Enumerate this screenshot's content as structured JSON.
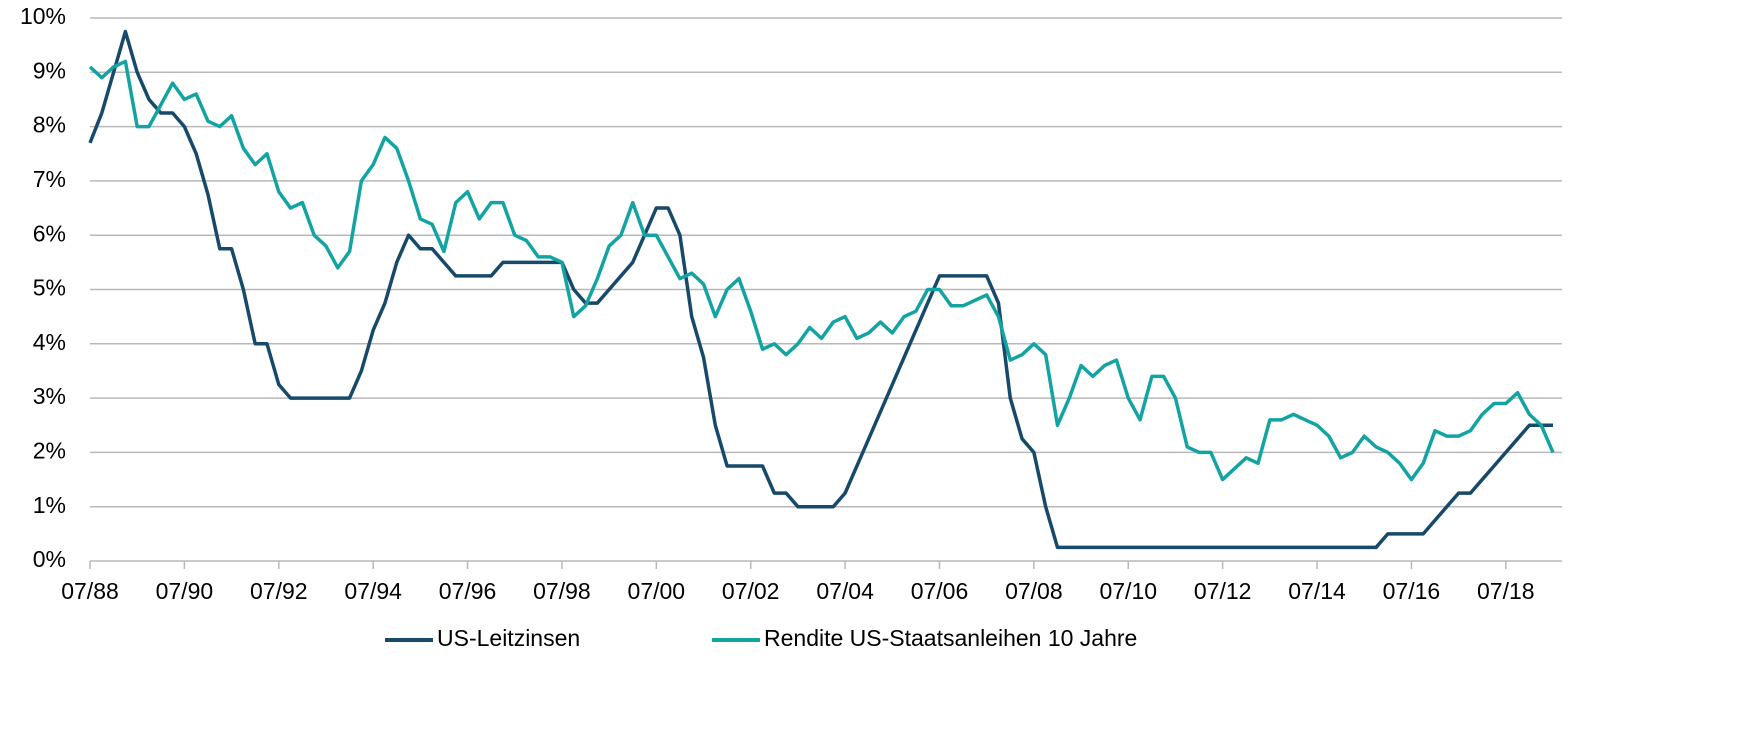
{
  "chart_data": {
    "type": "line",
    "x": [
      "07/88",
      "10/88",
      "01/89",
      "04/89",
      "07/89",
      "10/89",
      "01/90",
      "04/90",
      "07/90",
      "10/90",
      "01/91",
      "04/91",
      "07/91",
      "10/91",
      "01/92",
      "04/92",
      "07/92",
      "10/92",
      "01/93",
      "04/93",
      "07/93",
      "10/93",
      "01/94",
      "04/94",
      "07/94",
      "10/94",
      "01/95",
      "04/95",
      "07/95",
      "10/95",
      "01/96",
      "04/96",
      "07/96",
      "10/96",
      "01/97",
      "04/97",
      "07/97",
      "10/97",
      "01/98",
      "04/98",
      "07/98",
      "10/98",
      "01/99",
      "04/99",
      "07/99",
      "10/99",
      "01/00",
      "04/00",
      "07/00",
      "10/00",
      "01/01",
      "04/01",
      "07/01",
      "10/01",
      "01/02",
      "04/02",
      "07/02",
      "10/02",
      "01/03",
      "04/03",
      "07/03",
      "10/03",
      "01/04",
      "04/04",
      "07/04",
      "10/04",
      "01/05",
      "04/05",
      "07/05",
      "10/05",
      "01/06",
      "04/06",
      "07/06",
      "10/06",
      "01/07",
      "04/07",
      "07/07",
      "10/07",
      "01/08",
      "04/08",
      "07/08",
      "10/08",
      "01/09",
      "04/09",
      "07/09",
      "10/09",
      "01/10",
      "04/10",
      "07/10",
      "10/10",
      "01/11",
      "04/11",
      "07/11",
      "10/11",
      "01/12",
      "04/12",
      "07/12",
      "10/12",
      "01/13",
      "04/13",
      "07/13",
      "10/13",
      "01/14",
      "04/14",
      "07/14",
      "10/14",
      "01/15",
      "04/15",
      "07/15",
      "10/15",
      "01/16",
      "04/16",
      "07/16",
      "10/16",
      "01/17",
      "04/17",
      "07/17",
      "10/17",
      "01/18",
      "04/18",
      "07/18",
      "10/18",
      "01/19",
      "04/19",
      "07/19"
    ],
    "series": [
      {
        "name": "US-Leitzinsen",
        "color": "#17496a",
        "values": [
          7.7,
          8.25,
          9.0,
          9.75,
          9.0,
          8.5,
          8.25,
          8.25,
          8.0,
          7.5,
          6.75,
          5.75,
          5.75,
          5.0,
          4.0,
          4.0,
          3.25,
          3.0,
          3.0,
          3.0,
          3.0,
          3.0,
          3.0,
          3.5,
          4.25,
          4.75,
          5.5,
          6.0,
          5.75,
          5.75,
          5.5,
          5.25,
          5.25,
          5.25,
          5.25,
          5.5,
          5.5,
          5.5,
          5.5,
          5.5,
          5.5,
          5.0,
          4.75,
          4.75,
          5.0,
          5.25,
          5.5,
          6.0,
          6.5,
          6.5,
          6.0,
          4.5,
          3.75,
          2.5,
          1.75,
          1.75,
          1.75,
          1.75,
          1.25,
          1.25,
          1.0,
          1.0,
          1.0,
          1.0,
          1.25,
          1.75,
          2.25,
          2.75,
          3.25,
          3.75,
          4.25,
          4.75,
          5.25,
          5.25,
          5.25,
          5.25,
          5.25,
          4.75,
          3.0,
          2.25,
          2.0,
          1.0,
          0.25,
          0.25,
          0.25,
          0.25,
          0.25,
          0.25,
          0.25,
          0.25,
          0.25,
          0.25,
          0.25,
          0.25,
          0.25,
          0.25,
          0.25,
          0.25,
          0.25,
          0.25,
          0.25,
          0.25,
          0.25,
          0.25,
          0.25,
          0.25,
          0.25,
          0.25,
          0.25,
          0.25,
          0.5,
          0.5,
          0.5,
          0.5,
          0.75,
          1.0,
          1.25,
          1.25,
          1.5,
          1.75,
          2.0,
          2.25,
          2.5,
          2.5,
          2.5
        ]
      },
      {
        "name": "Rendite US-Staatsanleihen 10 Jahre",
        "color": "#14a3a3",
        "values": [
          9.1,
          8.9,
          9.1,
          9.2,
          8.0,
          8.0,
          8.4,
          8.8,
          8.5,
          8.6,
          8.1,
          8.0,
          8.2,
          7.6,
          7.3,
          7.5,
          6.8,
          6.5,
          6.6,
          6.0,
          5.8,
          5.4,
          5.7,
          7.0,
          7.3,
          7.8,
          7.6,
          7.0,
          6.3,
          6.2,
          5.7,
          6.6,
          6.8,
          6.3,
          6.6,
          6.6,
          6.0,
          5.9,
          5.6,
          5.6,
          5.5,
          4.5,
          4.7,
          5.2,
          5.8,
          6.0,
          6.6,
          6.0,
          6.0,
          5.6,
          5.2,
          5.3,
          5.1,
          4.5,
          5.0,
          5.2,
          4.6,
          3.9,
          4.0,
          3.8,
          4.0,
          4.3,
          4.1,
          4.4,
          4.5,
          4.1,
          4.2,
          4.4,
          4.2,
          4.5,
          4.6,
          5.0,
          5.0,
          4.7,
          4.7,
          4.8,
          4.9,
          4.5,
          3.7,
          3.8,
          4.0,
          3.8,
          2.5,
          3.0,
          3.6,
          3.4,
          3.6,
          3.7,
          3.0,
          2.6,
          3.4,
          3.4,
          3.0,
          2.1,
          2.0,
          2.0,
          1.5,
          1.7,
          1.9,
          1.8,
          2.6,
          2.6,
          2.7,
          2.6,
          2.5,
          2.3,
          1.9,
          2.0,
          2.3,
          2.1,
          2.0,
          1.8,
          1.5,
          1.8,
          2.4,
          2.3,
          2.3,
          2.4,
          2.7,
          2.9,
          2.9,
          3.1,
          2.7,
          2.5,
          2.0
        ]
      }
    ],
    "ylim": [
      0,
      10
    ],
    "yticks": [
      {
        "value": 0,
        "label": "0%"
      },
      {
        "value": 1,
        "label": "1%"
      },
      {
        "value": 2,
        "label": "2%"
      },
      {
        "value": 3,
        "label": "3%"
      },
      {
        "value": 4,
        "label": "4%"
      },
      {
        "value": 5,
        "label": "5%"
      },
      {
        "value": 6,
        "label": "6%"
      },
      {
        "value": 7,
        "label": "7%"
      },
      {
        "value": 8,
        "label": "8%"
      },
      {
        "value": 9,
        "label": "9%"
      },
      {
        "value": 10,
        "label": "10%"
      }
    ],
    "xticks": [
      "07/88",
      "07/90",
      "07/92",
      "07/94",
      "07/96",
      "07/98",
      "07/00",
      "07/02",
      "07/04",
      "07/06",
      "07/08",
      "07/10",
      "07/12",
      "07/14",
      "07/16",
      "07/18"
    ],
    "grid": true,
    "legend": "bottom"
  }
}
